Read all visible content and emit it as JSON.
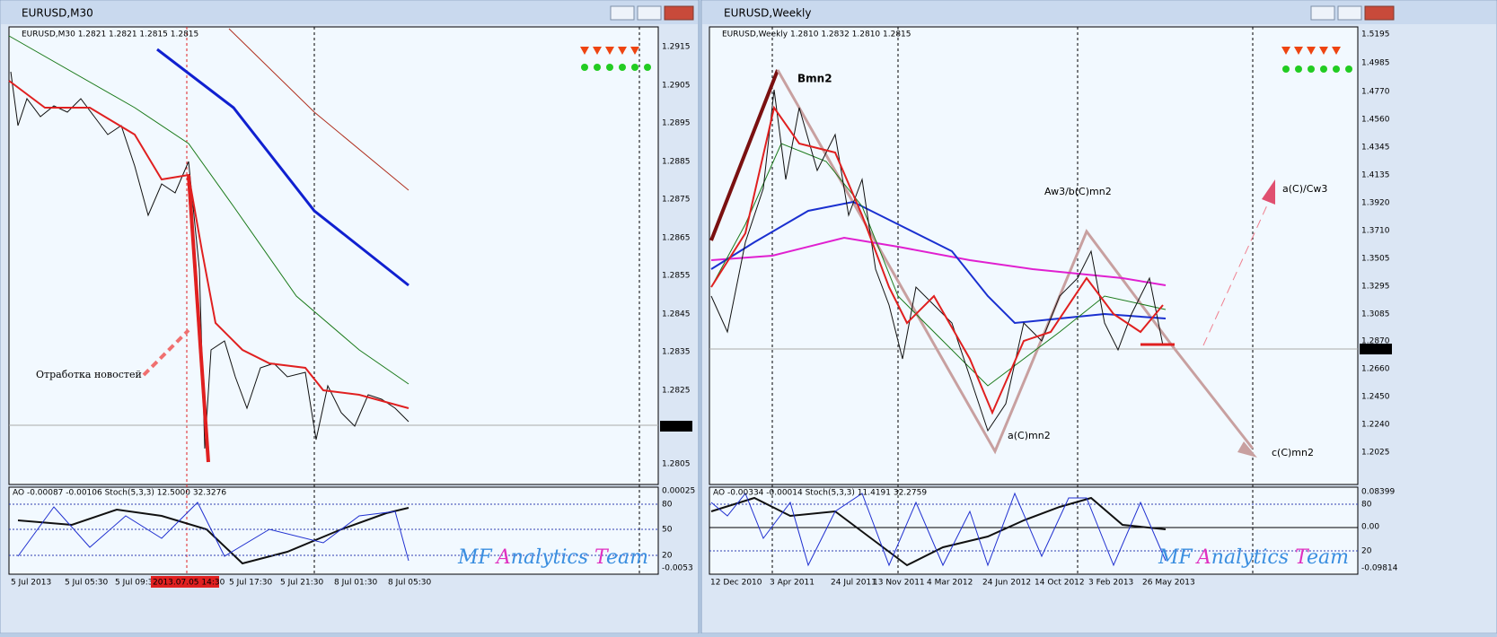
{
  "windows": [
    {
      "title": "EURUSD,M30",
      "info": "EURUSD,M30  1.2821 1.2821 1.2815 1.2815",
      "price_labels": [
        "1.2915",
        "1.2905",
        "1.2895",
        "1.2885",
        "1.2875",
        "1.2865",
        "1.2855",
        "1.2845",
        "1.2835",
        "1.2825",
        "1.2805"
      ],
      "current_price": "1.2815",
      "indicator_info": "AO -0.00087 -0.00106  Stoch(5,3,3) 12.5000 32.3276",
      "indicator_labels": [
        "0.00025",
        "80",
        "50",
        "20",
        "-0.0053"
      ],
      "time_labels": [
        "5 Jul 2013",
        "5 Jul 05:30",
        "5 Jul 09:3",
        "2013.07.05 14:30",
        "5 Jul 17:30",
        "5 Jul 21:30",
        "8 Jul 01:30",
        "8 Jul 05:30"
      ],
      "annotations": [
        "Отработка новостей"
      ]
    },
    {
      "title": "EURUSD,Weekly",
      "info": "EURUSD,Weekly  1.2810 1.2832 1.2810 1.2815",
      "price_labels": [
        "1.5195",
        "1.4985",
        "1.4770",
        "1.4560",
        "1.4345",
        "1.4135",
        "1.3920",
        "1.3710",
        "1.3505",
        "1.3295",
        "1.3085",
        "1.2870",
        "1.2660",
        "1.2450",
        "1.2240",
        "1.2025"
      ],
      "current_price": "1.2815",
      "indicator_info": "AO -0.00334 -0.00014  Stoch(5,3,3) 11.4191 32.2759",
      "indicator_labels": [
        "0.08399",
        "80",
        "0.00",
        "20",
        "-0.09814"
      ],
      "time_labels": [
        "12 Dec 2010",
        "3 Apr 2011",
        "24 Jul 2011",
        "13 Nov 2011",
        "4 Mar 2012",
        "24 Jun 2012",
        "14 Oct 2012",
        "3 Feb 2013",
        "26 May 2013"
      ],
      "annotations": [
        "Bmn2",
        "Aw3/b(C)mn2",
        "a(C)mn2",
        "a(C)/Cw3",
        "c(C)mn2"
      ]
    }
  ],
  "watermark": [
    "MF",
    "A",
    "nalytics",
    "T",
    "eam"
  ]
}
